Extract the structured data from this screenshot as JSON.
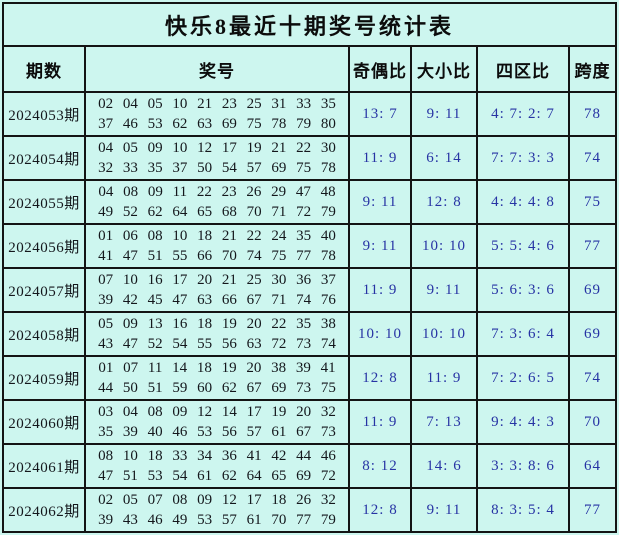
{
  "colors": {
    "table_background": "#cdf6ef",
    "grid_line": "#141414",
    "number_text": "#14171c",
    "stat_text": "#2733a4",
    "title_text": "#0c0c0c"
  },
  "chart_data": {
    "type": "table",
    "title": "快乐8最近十期奖号统计表",
    "columns": [
      "期数",
      "奖号",
      "奇偶比",
      "大小比",
      "四区比",
      "跨度"
    ],
    "rows": [
      {
        "period": "2024053期",
        "numbers_line1": "02 04 05 10 21 23 25 31 33 35",
        "numbers_line2": "37 46 53 62 63 69 75 78 79 80",
        "odd_even": "13: 7",
        "big_small": "9: 11",
        "four_zone": "4: 7: 2: 7",
        "span": "78"
      },
      {
        "period": "2024054期",
        "numbers_line1": "04 05 09 10 12 17 19 21 22 30",
        "numbers_line2": "32 33 35 37 50 54 57 69 75 78",
        "odd_even": "11: 9",
        "big_small": "6: 14",
        "four_zone": "7: 7: 3: 3",
        "span": "74"
      },
      {
        "period": "2024055期",
        "numbers_line1": "04 08 09 11 22 23 26 29 47 48",
        "numbers_line2": "49 52 62 64 65 68 70 71 72 79",
        "odd_even": "9: 11",
        "big_small": "12: 8",
        "four_zone": "4: 4: 4: 8",
        "span": "75"
      },
      {
        "period": "2024056期",
        "numbers_line1": "01 06 08 10 18 21 22 24 35 40",
        "numbers_line2": "41 47 51 55 66 70 74 75 77 78",
        "odd_even": "9: 11",
        "big_small": "10: 10",
        "four_zone": "5: 5: 4: 6",
        "span": "77"
      },
      {
        "period": "2024057期",
        "numbers_line1": "07 10 16 17 20 21 25 30 36 37",
        "numbers_line2": "39 42 45 47 63 66 67 71 74 76",
        "odd_even": "11: 9",
        "big_small": "9: 11",
        "four_zone": "5: 6: 3: 6",
        "span": "69"
      },
      {
        "period": "2024058期",
        "numbers_line1": "05 09 13 16 18 19 20 22 35 38",
        "numbers_line2": "43 47 52 54 55 56 63 72 73 74",
        "odd_even": "10: 10",
        "big_small": "10: 10",
        "four_zone": "7: 3: 6: 4",
        "span": "69"
      },
      {
        "period": "2024059期",
        "numbers_line1": "01 07 11 14 18 19 20 38 39 41",
        "numbers_line2": "44 50 51 59 60 62 67 69 73 75",
        "odd_even": "12: 8",
        "big_small": "11: 9",
        "four_zone": "7: 2: 6: 5",
        "span": "74"
      },
      {
        "period": "2024060期",
        "numbers_line1": "03 04 08 09 12 14 17 19 20 32",
        "numbers_line2": "35 39 40 46 53 56 57 61 67 73",
        "odd_even": "11: 9",
        "big_small": "7: 13",
        "four_zone": "9: 4: 4: 3",
        "span": "70"
      },
      {
        "period": "2024061期",
        "numbers_line1": "08 10 18 33 34 36 41 42 44 46",
        "numbers_line2": "47 51 53 54 61 62 64 65 69 72",
        "odd_even": "8: 12",
        "big_small": "14: 6",
        "four_zone": "3: 3: 8: 6",
        "span": "64"
      },
      {
        "period": "2024062期",
        "numbers_line1": "02 05 07 08 09 12 17 18 26 32",
        "numbers_line2": "39 43 46 49 53 57 61 70 77 79",
        "odd_even": "12: 8",
        "big_small": "9: 11",
        "four_zone": "8: 3: 5: 4",
        "span": "77"
      }
    ]
  }
}
